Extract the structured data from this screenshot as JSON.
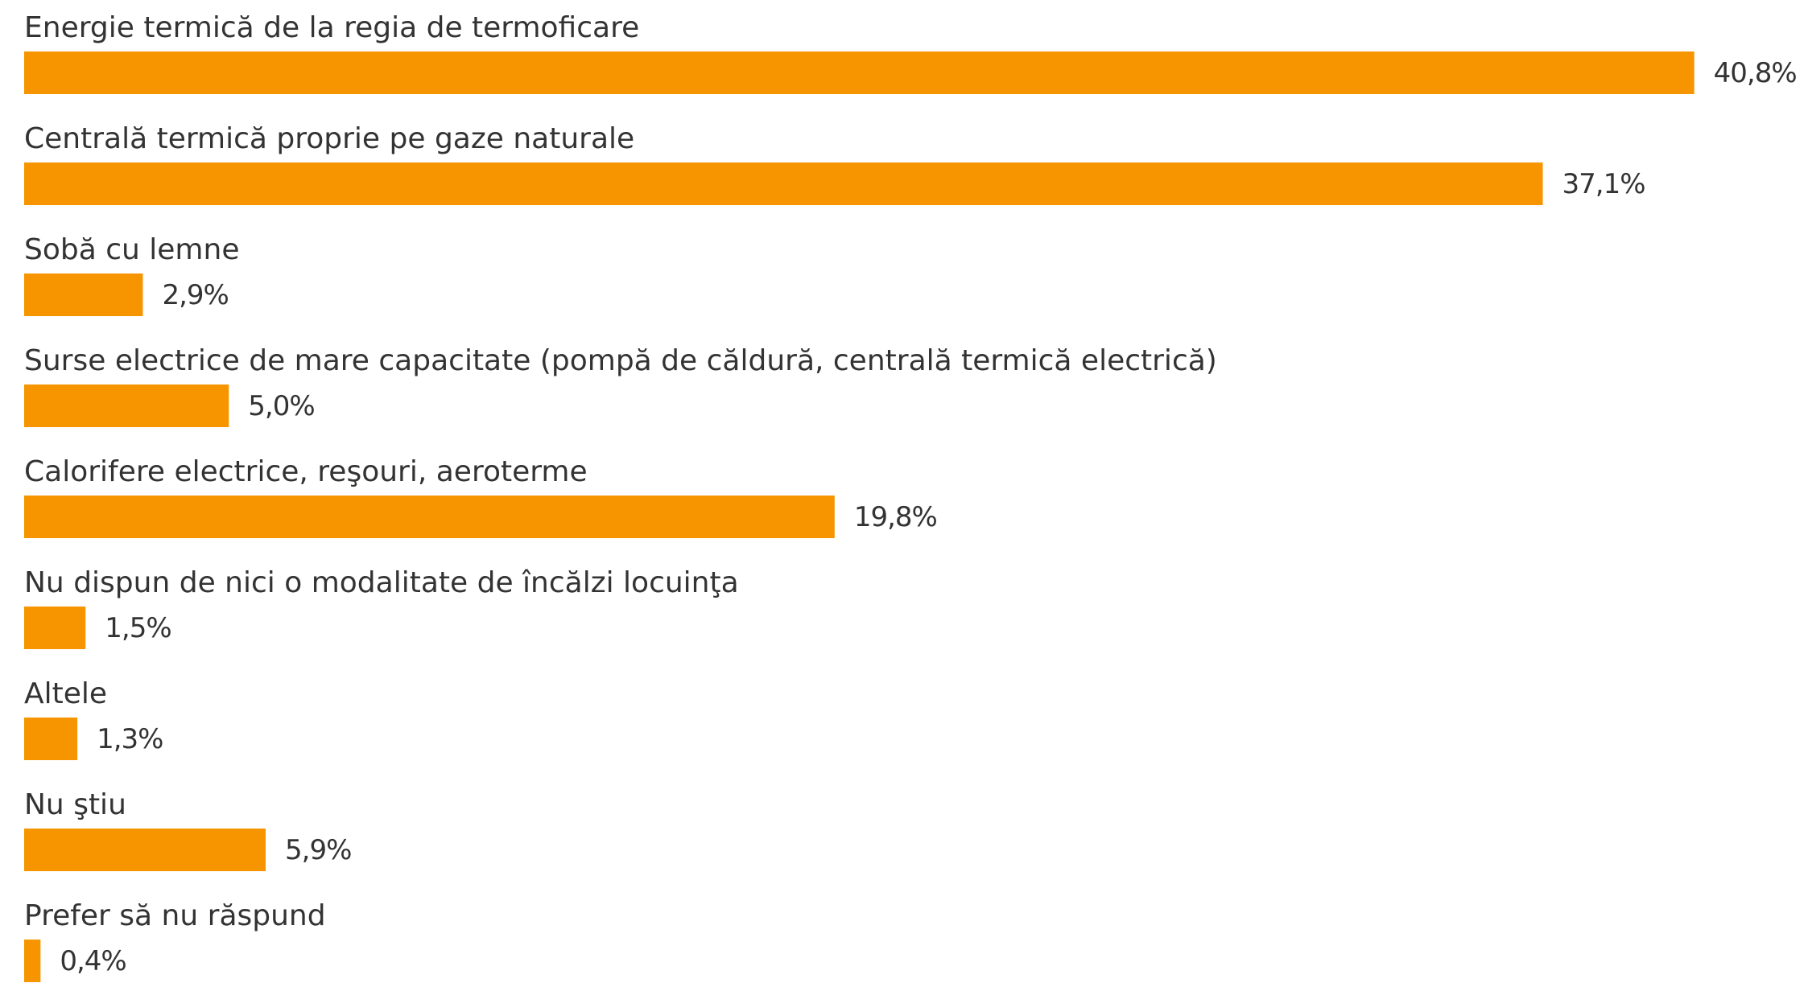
{
  "chart_data": {
    "type": "bar",
    "orientation": "horizontal",
    "categories": [
      "Energie termică de la regia de termoficare",
      "Centrală termică proprie pe gaze naturale",
      "Sobă cu lemne",
      "Surse electrice de mare capacitate (pompă de căldură, centrală termică electrică)",
      "Calorifere electrice, reşouri, aeroterme",
      "Nu dispun de nici o modalitate de încălzi locuinţa",
      "Altele",
      "Nu ştiu",
      "Prefer să nu răspund"
    ],
    "values": [
      40.8,
      37.1,
      2.9,
      5.0,
      19.8,
      1.5,
      1.3,
      5.9,
      0.4
    ],
    "value_labels": [
      "40,8%",
      "37,1%",
      "2,9%",
      "5,0%",
      "19,8%",
      "1,5%",
      "1,3%",
      "5,9%",
      "0,4%"
    ],
    "color": "#f79500"
  }
}
